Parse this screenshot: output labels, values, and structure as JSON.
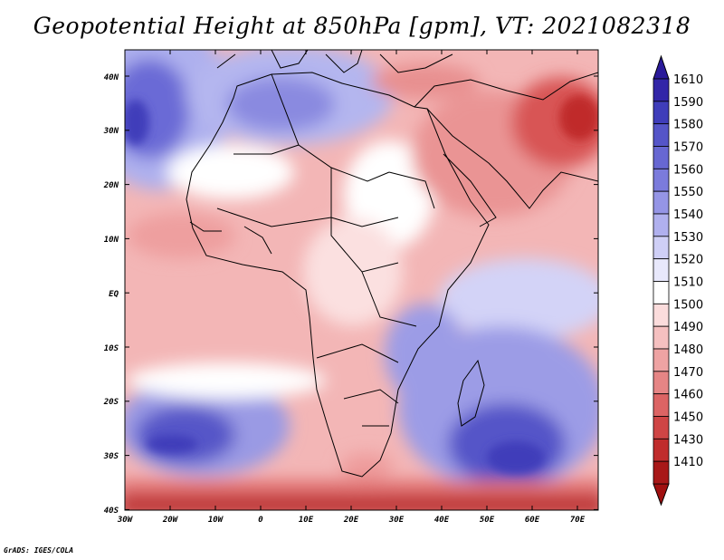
{
  "title": "Geopotential Height at 850hPa [gpm], VT: 2021082318",
  "credit": "GrADS: IGES/COLA",
  "lon_labels": [
    "30W",
    "20W",
    "10W",
    "0",
    "10E",
    "20E",
    "30E",
    "40E",
    "50E",
    "60E",
    "70E"
  ],
  "lat_labels": [
    "40N",
    "30N",
    "20N",
    "10N",
    "EQ",
    "10S",
    "20S",
    "30S",
    "40S"
  ],
  "colorbar": {
    "labels": [
      "1610",
      "1590",
      "1580",
      "1570",
      "1560",
      "1550",
      "1540",
      "1530",
      "1520",
      "1510",
      "1500",
      "1490",
      "1480",
      "1470",
      "1460",
      "1450",
      "1430",
      "1410"
    ],
    "colors": [
      "#3226a8",
      "#3f3dba",
      "#5555c8",
      "#6767d2",
      "#7b7bdc",
      "#9595e6",
      "#b0b0ee",
      "#cfcff6",
      "#e8e8fb",
      "#ffffff",
      "#fbdcdc",
      "#f5c0c0",
      "#eea3a3",
      "#e68585",
      "#dc6464",
      "#cf4545",
      "#c02c2c",
      "#a81818"
    ],
    "over_color": "#2a1a9a",
    "under_color": "#a01010"
  }
}
